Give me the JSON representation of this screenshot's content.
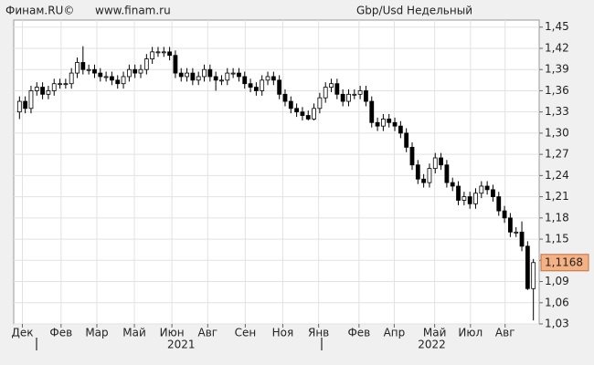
{
  "chart_data": {
    "type": "candlestick",
    "source": "Финам.RU©",
    "url": "www.finam.ru",
    "title": "Gbp/Usd Недельный",
    "series": [
      {
        "up_color": "#ffffff",
        "down_color": "#000000",
        "open": [
          1.33,
          1.345,
          1.335,
          1.36,
          1.365,
          1.355,
          1.36,
          1.37,
          1.37,
          1.37,
          1.385,
          1.4,
          1.39,
          1.39,
          1.385,
          1.38,
          1.38,
          1.375,
          1.37,
          1.38,
          1.39,
          1.385,
          1.39,
          1.405,
          1.415,
          1.415,
          1.415,
          1.41,
          1.385,
          1.38,
          1.385,
          1.375,
          1.38,
          1.39,
          1.38,
          1.375,
          1.375,
          1.385,
          1.385,
          1.38,
          1.37,
          1.365,
          1.36,
          1.375,
          1.38,
          1.375,
          1.355,
          1.345,
          1.335,
          1.33,
          1.325,
          1.32,
          1.335,
          1.35,
          1.365,
          1.37,
          1.355,
          1.345,
          1.355,
          1.355,
          1.36,
          1.345,
          1.315,
          1.31,
          1.32,
          1.315,
          1.31,
          1.3,
          1.28,
          1.255,
          1.235,
          1.23,
          1.25,
          1.265,
          1.255,
          1.23,
          1.225,
          1.205,
          1.21,
          1.2,
          1.215,
          1.225,
          1.22,
          1.21,
          1.19,
          1.18,
          1.16,
          1.16,
          1.14,
          1.08
        ],
        "high": [
          1.352,
          1.352,
          1.367,
          1.372,
          1.372,
          1.367,
          1.377,
          1.377,
          1.377,
          1.392,
          1.407,
          1.423,
          1.397,
          1.397,
          1.392,
          1.387,
          1.387,
          1.382,
          1.387,
          1.397,
          1.397,
          1.397,
          1.412,
          1.422,
          1.422,
          1.422,
          1.422,
          1.417,
          1.392,
          1.392,
          1.392,
          1.387,
          1.397,
          1.397,
          1.387,
          1.382,
          1.392,
          1.392,
          1.392,
          1.387,
          1.377,
          1.372,
          1.382,
          1.387,
          1.387,
          1.382,
          1.362,
          1.352,
          1.342,
          1.337,
          1.332,
          1.342,
          1.357,
          1.372,
          1.377,
          1.377,
          1.362,
          1.362,
          1.362,
          1.367,
          1.367,
          1.352,
          1.322,
          1.327,
          1.327,
          1.322,
          1.317,
          1.307,
          1.287,
          1.262,
          1.242,
          1.257,
          1.272,
          1.272,
          1.262,
          1.237,
          1.232,
          1.217,
          1.217,
          1.222,
          1.232,
          1.232,
          1.227,
          1.217,
          1.197,
          1.187,
          1.167,
          1.175,
          1.147,
          1.122
        ],
        "low": [
          1.32,
          1.328,
          1.328,
          1.353,
          1.348,
          1.348,
          1.353,
          1.363,
          1.363,
          1.363,
          1.378,
          1.383,
          1.383,
          1.378,
          1.373,
          1.373,
          1.368,
          1.363,
          1.363,
          1.373,
          1.378,
          1.378,
          1.383,
          1.398,
          1.408,
          1.408,
          1.403,
          1.378,
          1.373,
          1.373,
          1.368,
          1.368,
          1.373,
          1.373,
          1.36,
          1.368,
          1.368,
          1.378,
          1.373,
          1.363,
          1.358,
          1.353,
          1.353,
          1.368,
          1.368,
          1.348,
          1.338,
          1.328,
          1.323,
          1.318,
          1.318,
          1.318,
          1.328,
          1.343,
          1.358,
          1.348,
          1.338,
          1.338,
          1.348,
          1.348,
          1.338,
          1.308,
          1.303,
          1.303,
          1.308,
          1.303,
          1.293,
          1.273,
          1.248,
          1.228,
          1.223,
          1.223,
          1.243,
          1.248,
          1.223,
          1.218,
          1.198,
          1.198,
          1.193,
          1.193,
          1.208,
          1.213,
          1.203,
          1.183,
          1.173,
          1.153,
          1.153,
          1.133,
          1.078,
          1.035
        ],
        "close": [
          1.345,
          1.335,
          1.36,
          1.365,
          1.355,
          1.36,
          1.37,
          1.37,
          1.37,
          1.385,
          1.4,
          1.39,
          1.39,
          1.385,
          1.38,
          1.38,
          1.375,
          1.37,
          1.38,
          1.39,
          1.385,
          1.39,
          1.405,
          1.415,
          1.415,
          1.415,
          1.41,
          1.385,
          1.38,
          1.385,
          1.375,
          1.38,
          1.39,
          1.38,
          1.375,
          1.375,
          1.385,
          1.385,
          1.38,
          1.37,
          1.365,
          1.36,
          1.375,
          1.38,
          1.375,
          1.355,
          1.345,
          1.335,
          1.33,
          1.325,
          1.32,
          1.335,
          1.35,
          1.365,
          1.37,
          1.355,
          1.345,
          1.355,
          1.355,
          1.36,
          1.345,
          1.315,
          1.31,
          1.32,
          1.315,
          1.31,
          1.3,
          1.28,
          1.255,
          1.235,
          1.23,
          1.25,
          1.265,
          1.255,
          1.23,
          1.225,
          1.205,
          1.21,
          1.2,
          1.215,
          1.225,
          1.22,
          1.21,
          1.19,
          1.18,
          1.16,
          1.16,
          1.14,
          1.08,
          1.1168
        ]
      }
    ],
    "last_price_label": "1,1168",
    "last_price_color": "#f4b183",
    "xlim": [
      -1,
      90
    ],
    "xticks": [
      {
        "value": 0.5,
        "label": "Дек"
      },
      {
        "value": 7.2,
        "label": "Фев"
      },
      {
        "value": 13.4,
        "label": "Мар"
      },
      {
        "value": 19.9,
        "label": "Май"
      },
      {
        "value": 26.4,
        "label": "Июн"
      },
      {
        "value": 32.6,
        "label": "Авг"
      },
      {
        "value": 39.1,
        "label": "Сен"
      },
      {
        "value": 45.6,
        "label": "Ноя"
      },
      {
        "value": 51.8,
        "label": "Янв"
      },
      {
        "value": 58.8,
        "label": "Фев"
      },
      {
        "value": 64.9,
        "label": "Апр"
      },
      {
        "value": 71.9,
        "label": "Май"
      },
      {
        "value": 78.1,
        "label": "Июл"
      },
      {
        "value": 84.1,
        "label": "Авг"
      }
    ],
    "year_labels": [
      {
        "value": 28,
        "label": "2021"
      },
      {
        "value": 71.4,
        "label": "2022"
      }
    ],
    "ylim": [
      1.03,
      1.46
    ],
    "yticks": [
      {
        "value": 1.45,
        "label": "1,45"
      },
      {
        "value": 1.42,
        "label": "1,42"
      },
      {
        "value": 1.39,
        "label": "1,39"
      },
      {
        "value": 1.36,
        "label": "1,36"
      },
      {
        "value": 1.33,
        "label": "1,33"
      },
      {
        "value": 1.3,
        "label": "1,30"
      },
      {
        "value": 1.27,
        "label": "1,27"
      },
      {
        "value": 1.24,
        "label": "1,24"
      },
      {
        "value": 1.21,
        "label": "1,21"
      },
      {
        "value": 1.18,
        "label": "1,18"
      },
      {
        "value": 1.15,
        "label": "1,15"
      },
      {
        "value": 1.12,
        "label": "1,12"
      },
      {
        "value": 1.09,
        "label": "1,09"
      },
      {
        "value": 1.06,
        "label": "1,06"
      },
      {
        "value": 1.03,
        "label": "1,03"
      }
    ],
    "grid": true
  }
}
